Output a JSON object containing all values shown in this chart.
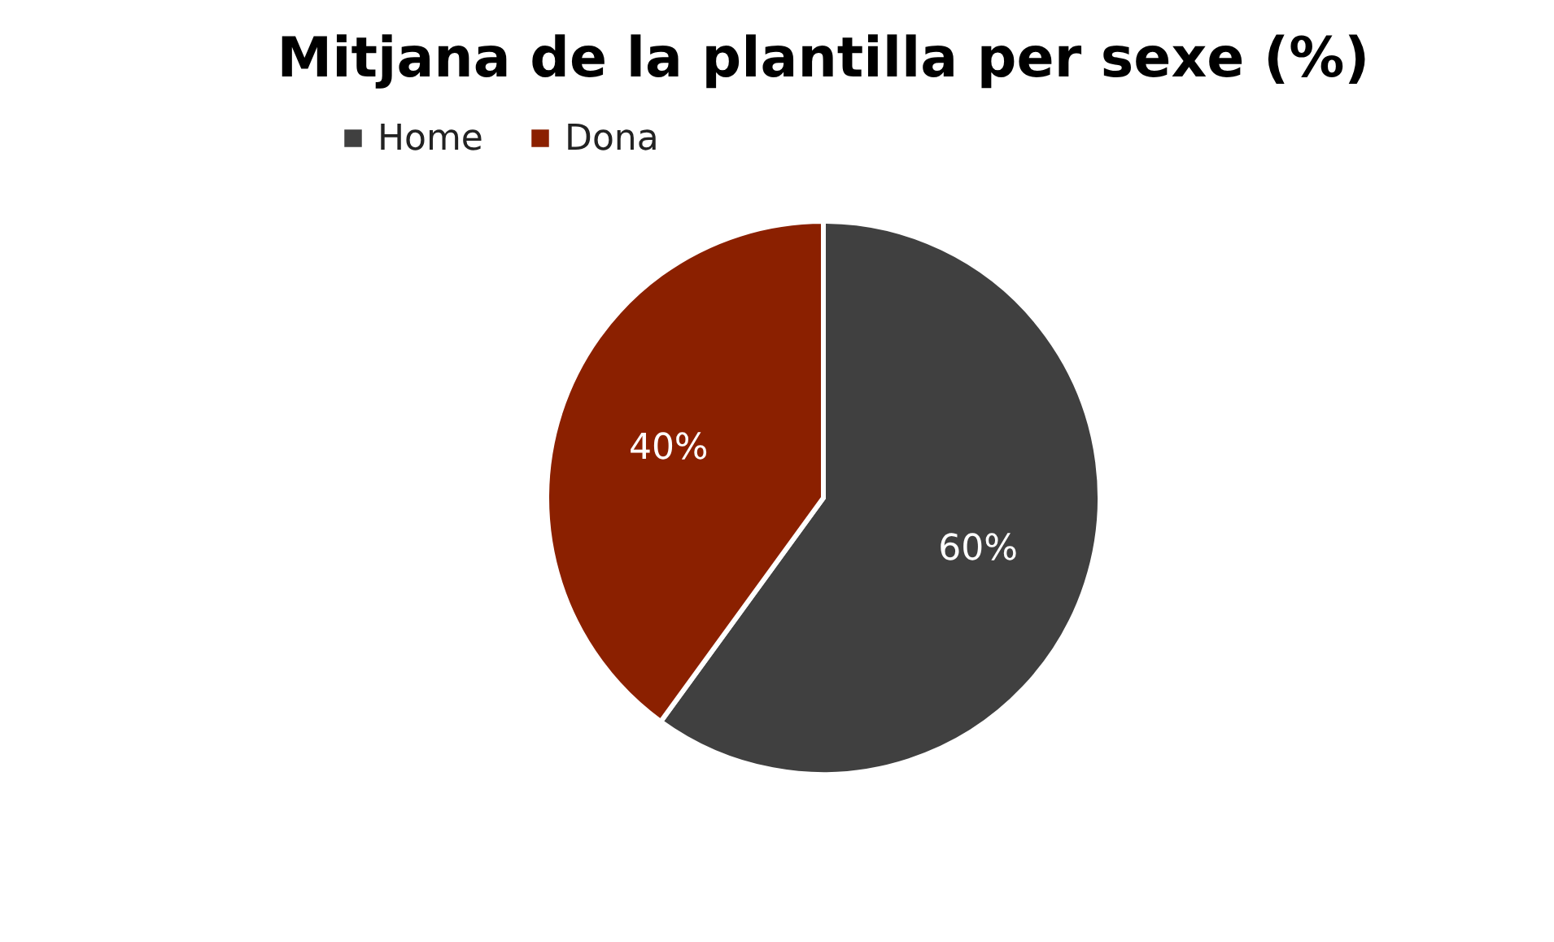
{
  "chart_data": {
    "type": "pie",
    "title": "Mitjana de la plantilla per sexe (%)",
    "categories": [
      "Home",
      "Dona"
    ],
    "values": [
      60,
      40
    ],
    "colors": [
      "#404040",
      "#8b2000"
    ],
    "value_labels": [
      "60%",
      "40%"
    ],
    "legend": "top"
  }
}
